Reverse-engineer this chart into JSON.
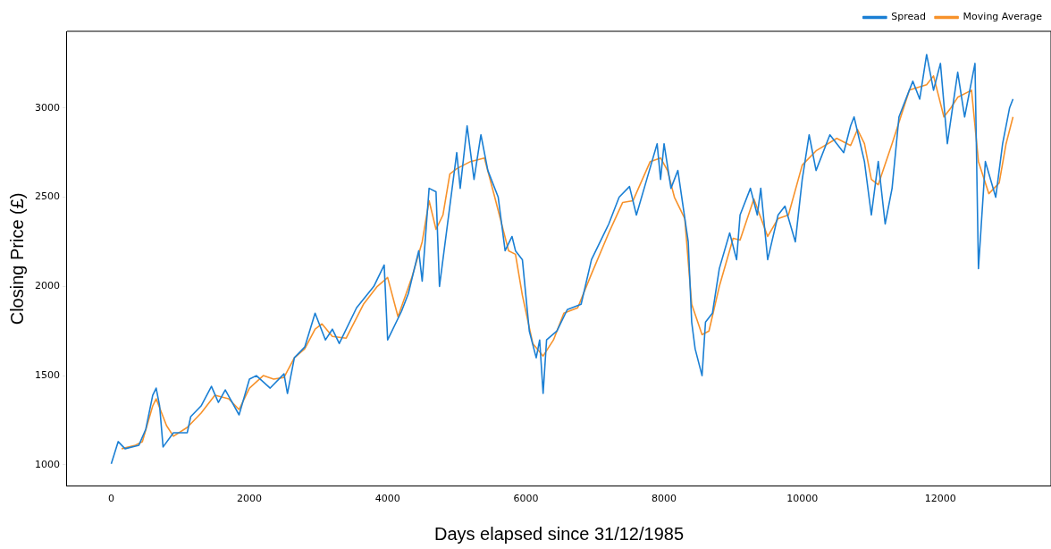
{
  "chart_data": {
    "type": "line",
    "xlabel": "Days elapsed since 31/12/1985",
    "ylabel": "Closing Price (£)",
    "xlim": [
      -640,
      13600
    ],
    "ylim": [
      880,
      3430
    ],
    "xticks": [
      0,
      2000,
      4000,
      6000,
      8000,
      10000,
      12000
    ],
    "yticks": [
      1000,
      1500,
      2000,
      2500,
      3000
    ],
    "grid": false,
    "legend": "top right",
    "marker": "none",
    "line_style": "solid",
    "series": [
      {
        "name": "Spread",
        "color": "#1a7fd4",
        "x": [
          0,
          100,
          200,
          400,
          500,
          600,
          650,
          700,
          750,
          900,
          1100,
          1150,
          1300,
          1450,
          1550,
          1650,
          1850,
          2000,
          2100,
          2300,
          2500,
          2550,
          2650,
          2800,
          2950,
          3100,
          3200,
          3300,
          3550,
          3800,
          3950,
          4000,
          4200,
          4300,
          4450,
          4500,
          4600,
          4700,
          4750,
          4800,
          5000,
          5050,
          5150,
          5250,
          5350,
          5450,
          5600,
          5700,
          5800,
          5850,
          5950,
          6000,
          6050,
          6150,
          6200,
          6250,
          6300,
          6450,
          6600,
          6800,
          6950,
          7200,
          7350,
          7500,
          7600,
          7750,
          7900,
          7950,
          8000,
          8100,
          8200,
          8350,
          8400,
          8450,
          8550,
          8600,
          8700,
          8800,
          8950,
          9050,
          9100,
          9250,
          9350,
          9400,
          9500,
          9650,
          9750,
          9900,
          10000,
          10100,
          10200,
          10400,
          10600,
          10700,
          10750,
          10900,
          11000,
          11100,
          11200,
          11300,
          11400,
          11600,
          11700,
          11800,
          11900,
          12000,
          12100,
          12250,
          12350,
          12500,
          12550,
          12650,
          12800,
          12900,
          13000,
          13050
        ],
        "values": [
          1005,
          1130,
          1090,
          1110,
          1200,
          1390,
          1430,
          1330,
          1100,
          1180,
          1180,
          1270,
          1330,
          1440,
          1350,
          1420,
          1280,
          1480,
          1500,
          1430,
          1510,
          1400,
          1600,
          1660,
          1850,
          1700,
          1760,
          1680,
          1880,
          2000,
          2120,
          1700,
          1860,
          1960,
          2200,
          2030,
          2550,
          2530,
          2000,
          2150,
          2750,
          2550,
          2900,
          2600,
          2850,
          2650,
          2500,
          2200,
          2280,
          2200,
          2150,
          1950,
          1750,
          1600,
          1700,
          1400,
          1700,
          1750,
          1870,
          1900,
          2150,
          2350,
          2500,
          2560,
          2400,
          2600,
          2800,
          2600,
          2800,
          2550,
          2650,
          2250,
          1800,
          1650,
          1500,
          1800,
          1850,
          2100,
          2300,
          2150,
          2400,
          2550,
          2400,
          2550,
          2150,
          2400,
          2450,
          2250,
          2600,
          2850,
          2650,
          2850,
          2750,
          2900,
          2950,
          2700,
          2400,
          2700,
          2350,
          2550,
          2950,
          3150,
          3050,
          3300,
          3100,
          3250,
          2800,
          3200,
          2950,
          3250,
          2100,
          2700,
          2500,
          2800,
          3000,
          3050
        ]
      },
      {
        "name": "Moving Average",
        "color": "#f7922b",
        "x": [
          150,
          350,
          450,
          600,
          650,
          800,
          900,
          1100,
          1300,
          1500,
          1700,
          1850,
          2000,
          2200,
          2350,
          2500,
          2650,
          2800,
          2950,
          3050,
          3200,
          3400,
          3650,
          3850,
          4000,
          4150,
          4350,
          4500,
          4600,
          4700,
          4800,
          4900,
          5000,
          5200,
          5400,
          5550,
          5750,
          5850,
          5950,
          6100,
          6250,
          6400,
          6550,
          6750,
          6950,
          7200,
          7400,
          7550,
          7800,
          7950,
          8050,
          8150,
          8300,
          8400,
          8550,
          8650,
          8800,
          9000,
          9100,
          9300,
          9500,
          9650,
          9800,
          10000,
          10200,
          10500,
          10700,
          10800,
          10900,
          11000,
          11100,
          11300,
          11550,
          11800,
          11900,
          12050,
          12150,
          12250,
          12450,
          12550,
          12700,
          12850,
          12950,
          13050
        ],
        "values": [
          1090,
          1110,
          1130,
          1330,
          1370,
          1220,
          1160,
          1210,
          1290,
          1390,
          1370,
          1310,
          1430,
          1500,
          1480,
          1490,
          1600,
          1650,
          1760,
          1790,
          1720,
          1710,
          1900,
          2000,
          2050,
          1830,
          2050,
          2250,
          2480,
          2320,
          2400,
          2630,
          2660,
          2700,
          2720,
          2500,
          2200,
          2180,
          1950,
          1680,
          1610,
          1700,
          1850,
          1880,
          2070,
          2300,
          2470,
          2480,
          2700,
          2720,
          2650,
          2500,
          2380,
          1900,
          1730,
          1750,
          2000,
          2270,
          2260,
          2490,
          2280,
          2380,
          2400,
          2680,
          2760,
          2830,
          2790,
          2880,
          2800,
          2600,
          2570,
          2800,
          3100,
          3130,
          3180,
          2950,
          3000,
          3060,
          3100,
          2700,
          2520,
          2580,
          2800,
          2950
        ]
      }
    ]
  }
}
